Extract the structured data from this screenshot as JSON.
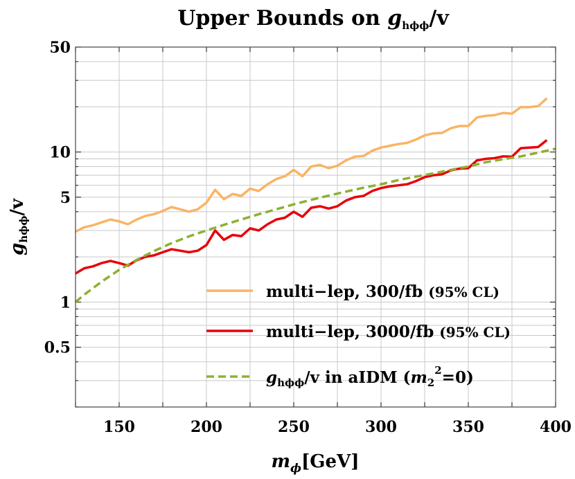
{
  "chart_data": {
    "type": "line",
    "title": {
      "main": "Upper Bounds on ",
      "var": "g",
      "sub": "hϕϕ",
      "tail": "/v"
    },
    "xlabel": {
      "var": "m",
      "sub": "ϕ",
      "unit": "[GeV]"
    },
    "ylabel": {
      "var": "g",
      "sub": "hϕϕ",
      "tail": "/v"
    },
    "x_scale": "linear",
    "y_scale": "log",
    "xlim": [
      125,
      400
    ],
    "ylim": [
      0.2,
      50
    ],
    "x_ticks": [
      {
        "value": 150,
        "label": "150"
      },
      {
        "value": 200,
        "label": "200"
      },
      {
        "value": 250,
        "label": "250"
      },
      {
        "value": 300,
        "label": "300"
      },
      {
        "value": 350,
        "label": "350"
      },
      {
        "value": 400,
        "label": "400"
      }
    ],
    "y_ticks": [
      {
        "value": 0.5,
        "label": "0.5"
      },
      {
        "value": 1,
        "label": "1"
      },
      {
        "value": 5,
        "label": "5"
      },
      {
        "value": 10,
        "label": "10"
      },
      {
        "value": 50,
        "label": "50"
      }
    ],
    "x_gridlines": [
      125,
      150,
      175,
      200,
      225,
      250,
      275,
      300,
      325,
      350,
      375,
      400
    ],
    "y_gridlines": [
      0.2,
      0.3,
      0.4,
      0.5,
      0.6,
      0.7,
      0.8,
      0.9,
      1,
      2,
      3,
      4,
      5,
      6,
      7,
      8,
      9,
      10,
      20,
      30,
      40,
      50
    ],
    "grid": true,
    "legend_position": "bottom-right",
    "series": [
      {
        "name": "multi-lep 300/fb",
        "legend": {
          "text": "multi−lep, 300/fb ",
          "small": "(95% CL)"
        },
        "color": "#f9b466",
        "dash": "solid",
        "x": [
          125,
          130,
          135,
          140,
          145,
          150,
          155,
          160,
          165,
          170,
          175,
          180,
          185,
          190,
          195,
          200,
          205,
          210,
          215,
          220,
          225,
          230,
          235,
          240,
          245,
          250,
          255,
          260,
          265,
          270,
          275,
          280,
          285,
          290,
          295,
          300,
          305,
          310,
          315,
          320,
          325,
          330,
          335,
          340,
          345,
          350,
          355,
          360,
          365,
          370,
          375,
          380,
          385,
          390,
          395
        ],
        "values": [
          2.95,
          3.15,
          3.25,
          3.4,
          3.55,
          3.45,
          3.3,
          3.55,
          3.75,
          3.85,
          4.05,
          4.3,
          4.15,
          4.0,
          4.15,
          4.6,
          5.6,
          4.85,
          5.25,
          5.1,
          5.7,
          5.5,
          6.1,
          6.6,
          6.9,
          7.6,
          6.9,
          8.0,
          8.2,
          7.8,
          8.1,
          8.8,
          9.3,
          9.4,
          10.2,
          10.7,
          11.0,
          11.3,
          11.5,
          12.1,
          12.9,
          13.3,
          13.4,
          14.4,
          14.9,
          14.9,
          17.0,
          17.4,
          17.6,
          18.2,
          18.0,
          19.9,
          19.9,
          20.2,
          22.8
        ]
      },
      {
        "name": "multi-lep 3000/fb",
        "legend": {
          "text": "multi−lep, 3000/fb ",
          "small": "(95% CL)"
        },
        "color": "#e8000b",
        "dash": "solid",
        "x": [
          125,
          130,
          135,
          140,
          145,
          150,
          155,
          160,
          165,
          170,
          175,
          180,
          185,
          190,
          195,
          200,
          205,
          210,
          215,
          220,
          225,
          230,
          235,
          240,
          245,
          250,
          255,
          260,
          265,
          270,
          275,
          280,
          285,
          290,
          295,
          300,
          305,
          310,
          315,
          320,
          325,
          330,
          335,
          340,
          345,
          350,
          355,
          360,
          365,
          370,
          375,
          380,
          385,
          390,
          395
        ],
        "values": [
          1.55,
          1.68,
          1.73,
          1.82,
          1.88,
          1.82,
          1.75,
          1.9,
          2.0,
          2.05,
          2.15,
          2.25,
          2.2,
          2.15,
          2.2,
          2.4,
          3.0,
          2.6,
          2.8,
          2.75,
          3.1,
          3.0,
          3.3,
          3.55,
          3.65,
          4.0,
          3.7,
          4.25,
          4.35,
          4.2,
          4.35,
          4.75,
          5.0,
          5.1,
          5.5,
          5.75,
          5.9,
          6.0,
          6.1,
          6.4,
          6.8,
          7.0,
          7.1,
          7.55,
          7.75,
          7.8,
          8.8,
          9.0,
          9.1,
          9.35,
          9.3,
          10.6,
          10.7,
          10.8,
          12.0
        ]
      },
      {
        "name": "g/v in aIDM",
        "legend": {
          "var": "g",
          "sub": "hϕϕ",
          "text": "/v in aIDM (",
          "var2": "m",
          "sub2": "2",
          "sup2": "2",
          "tail": "=0)"
        },
        "color": "#8db030",
        "dash": "dashed",
        "x": [
          125,
          130,
          140,
          150,
          160,
          170,
          180,
          190,
          200,
          210,
          220,
          230,
          240,
          250,
          260,
          270,
          280,
          290,
          300,
          310,
          320,
          330,
          340,
          350,
          360,
          370,
          380,
          390,
          400
        ],
        "values": [
          1.0,
          1.12,
          1.37,
          1.64,
          1.91,
          2.19,
          2.47,
          2.74,
          3.0,
          3.27,
          3.55,
          3.85,
          4.15,
          4.48,
          4.8,
          5.12,
          5.45,
          5.78,
          6.1,
          6.5,
          6.85,
          7.2,
          7.6,
          8.0,
          8.55,
          8.95,
          9.35,
          9.9,
          10.5
        ]
      }
    ]
  }
}
